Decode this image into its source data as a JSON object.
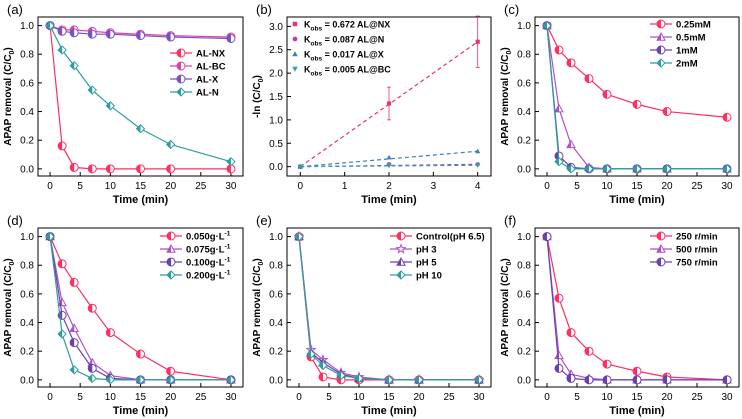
{
  "figure": {
    "xlabel": "Time (min)"
  },
  "chart_data": [
    {
      "panel_label": "(a)",
      "type": "line",
      "ylabel_main": "APAP removal (C/C",
      "ylabel_sub": "0",
      "ylabel_end": ")",
      "xlim": [
        -2,
        32
      ],
      "xticks": [
        0,
        5,
        10,
        15,
        20,
        25,
        30
      ],
      "ylim": [
        -0.05,
        1.06
      ],
      "yticks": [
        "0.0",
        "0.2",
        "0.4",
        "0.6",
        "0.8",
        "1.0"
      ],
      "legend_position": "middle-right",
      "series": [
        {
          "name": "AL-NX",
          "color": "#ff2e63",
          "marker": "half-circle-left",
          "x": [
            0,
            2,
            4,
            7,
            10,
            15,
            20,
            30
          ],
          "y": [
            1.0,
            0.16,
            0.01,
            0.0,
            0.0,
            0.0,
            0.0,
            0.0
          ]
        },
        {
          "name": "AL-BC",
          "color": "#e0449e",
          "marker": "half-circle-left",
          "x": [
            0,
            2,
            4,
            7,
            10,
            15,
            20,
            30
          ],
          "y": [
            1.0,
            0.97,
            0.97,
            0.96,
            0.95,
            0.94,
            0.93,
            0.92
          ]
        },
        {
          "name": "AL-X",
          "color": "#7a50c8",
          "marker": "half-circle-left",
          "x": [
            0,
            2,
            4,
            7,
            10,
            15,
            20,
            30
          ],
          "y": [
            1.0,
            0.96,
            0.95,
            0.94,
            0.94,
            0.93,
            0.92,
            0.91
          ]
        },
        {
          "name": "AL-N",
          "color": "#2f9da0",
          "marker": "half-diamond",
          "x": [
            0,
            2,
            4,
            7,
            10,
            15,
            20,
            30
          ],
          "y": [
            1.0,
            0.83,
            0.72,
            0.55,
            0.44,
            0.28,
            0.17,
            0.05
          ]
        }
      ]
    },
    {
      "panel_label": "(b)",
      "type": "scatter",
      "ylabel_main": "-ln (C/C",
      "ylabel_sub": "0",
      "ylabel_end": ")",
      "xlim": [
        -0.3,
        4.3
      ],
      "xticks": [
        0,
        1,
        2,
        3,
        4
      ],
      "ylim": [
        -0.2,
        3.2
      ],
      "yticks": [
        "0.0",
        "0.5",
        "1.0",
        "1.5",
        "2.0",
        "2.5",
        "3.0"
      ],
      "legend_position": "top-left",
      "series": [
        {
          "name": "AL@NX",
          "kobs": "0.672",
          "color": "#e8336d",
          "marker": "square",
          "x": [
            0,
            2,
            4
          ],
          "y": [
            0.0,
            1.35,
            2.67
          ],
          "err": [
            0,
            0.35,
            0.55
          ]
        },
        {
          "name": "AL@N",
          "kobs": "0.087",
          "color": "#c03aa8",
          "marker": "circle",
          "x": [
            0,
            2,
            4
          ],
          "y": [
            0.0,
            0.05,
            0.05
          ],
          "err": [
            0,
            0,
            0
          ]
        },
        {
          "name": "AL@X",
          "kobs": "0.017 ",
          "color": "#3a7fbf",
          "marker": "triangle",
          "x": [
            0,
            2,
            4
          ],
          "y": [
            0.0,
            0.2,
            0.33
          ],
          "err": [
            0,
            0,
            0
          ]
        },
        {
          "name": "AL@BC",
          "kobs": "0.005",
          "color": "#2aa5a5",
          "marker": "triangle-down",
          "x": [
            0,
            2,
            4
          ],
          "y": [
            0.0,
            0.02,
            0.03
          ],
          "err": [
            0,
            0,
            0
          ]
        }
      ]
    },
    {
      "panel_label": "(c)",
      "type": "line",
      "ylabel_main": "APAP removal (C/C",
      "ylabel_sub": "0",
      "ylabel_end": ")",
      "xlim": [
        -2,
        32
      ],
      "xticks": [
        0,
        5,
        10,
        15,
        20,
        25,
        30
      ],
      "ylim": [
        -0.05,
        1.06
      ],
      "yticks": [
        "0.0",
        "0.2",
        "0.4",
        "0.6",
        "0.8",
        "1.0"
      ],
      "legend_position": "top-right",
      "series": [
        {
          "name": "0.25mM",
          "color": "#ff2e63",
          "marker": "half-circle-left",
          "x": [
            0,
            2,
            4,
            7,
            10,
            15,
            20,
            30
          ],
          "y": [
            1.0,
            0.83,
            0.74,
            0.63,
            0.52,
            0.45,
            0.4,
            0.36
          ]
        },
        {
          "name": "0.5mM",
          "color": "#b050c8",
          "marker": "half-triangle",
          "x": [
            0,
            2,
            4,
            7,
            10,
            15,
            20,
            30
          ],
          "y": [
            1.0,
            0.42,
            0.17,
            0.01,
            0.0,
            0.0,
            0.0,
            0.0
          ]
        },
        {
          "name": "1mM",
          "color": "#6a40b0",
          "marker": "half-circle-left",
          "x": [
            0,
            2,
            4,
            7,
            10,
            15,
            20,
            30
          ],
          "y": [
            1.0,
            0.09,
            0.01,
            0.0,
            0.0,
            0.0,
            0.0,
            0.0
          ]
        },
        {
          "name": "2mM",
          "color": "#2f9da0",
          "marker": "half-diamond",
          "x": [
            0,
            2,
            4,
            7,
            10,
            15,
            20,
            30
          ],
          "y": [
            1.0,
            0.05,
            0.0,
            0.0,
            0.0,
            0.0,
            0.0,
            0.0
          ]
        }
      ]
    },
    {
      "panel_label": "(d)",
      "type": "line",
      "ylabel_main": "APAP removal (C/C",
      "ylabel_sub": "0",
      "ylabel_end": ")",
      "xlim": [
        -2,
        32
      ],
      "xticks": [
        0,
        5,
        10,
        15,
        20,
        25,
        30
      ],
      "ylim": [
        -0.05,
        1.06
      ],
      "yticks": [
        "0.0",
        "0.2",
        "0.4",
        "0.6",
        "0.8",
        "1.0"
      ],
      "legend_position": "top-right",
      "series": [
        {
          "name": "0.050g·L",
          "sup": "-1",
          "color": "#ff2e63",
          "marker": "half-circle-left",
          "x": [
            0,
            2,
            4,
            7,
            10,
            15,
            20,
            30
          ],
          "y": [
            1.0,
            0.81,
            0.68,
            0.5,
            0.33,
            0.18,
            0.06,
            0.0
          ]
        },
        {
          "name": "0.075g·L",
          "sup": "-1",
          "color": "#b050c8",
          "marker": "half-triangle",
          "x": [
            0,
            2,
            4,
            7,
            10,
            15,
            20,
            30
          ],
          "y": [
            1.0,
            0.54,
            0.36,
            0.12,
            0.03,
            0.0,
            0.0,
            0.0
          ]
        },
        {
          "name": "0.100g·L",
          "sup": "-1",
          "color": "#6a40b0",
          "marker": "half-circle-left",
          "x": [
            0,
            2,
            4,
            7,
            10,
            15,
            20,
            30
          ],
          "y": [
            1.0,
            0.45,
            0.26,
            0.08,
            0.01,
            0.0,
            0.0,
            0.0
          ]
        },
        {
          "name": "0.200g·L",
          "sup": "-1",
          "color": "#2f9da0",
          "marker": "half-diamond",
          "x": [
            0,
            2,
            4,
            7,
            10,
            15,
            20,
            30
          ],
          "y": [
            1.0,
            0.32,
            0.07,
            0.01,
            0.0,
            0.0,
            0.0,
            0.0
          ]
        }
      ]
    },
    {
      "panel_label": "(e)",
      "type": "line",
      "ylabel_main": "APAP removal (C/C",
      "ylabel_sub": "0",
      "ylabel_end": ")",
      "xlim": [
        -2,
        32
      ],
      "xticks": [
        0,
        5,
        10,
        15,
        20,
        25,
        30
      ],
      "ylim": [
        -0.05,
        1.06
      ],
      "yticks": [
        "0.0",
        "0.2",
        "0.4",
        "0.6",
        "0.8",
        "1.0"
      ],
      "legend_position": "top-right",
      "series": [
        {
          "name": "Control(pH 6.5)",
          "color": "#ff2e63",
          "marker": "half-circle-left",
          "x": [
            0,
            2,
            4,
            7,
            10,
            15,
            20,
            30
          ],
          "y": [
            1.0,
            0.16,
            0.02,
            0.0,
            0.0,
            0.0,
            0.0,
            0.0
          ]
        },
        {
          "name": "pH 3",
          "color": "#b050c8",
          "marker": "star",
          "x": [
            0,
            2,
            4,
            7,
            10,
            15,
            20,
            30
          ],
          "y": [
            1.0,
            0.21,
            0.14,
            0.05,
            0.02,
            0.0,
            0.0,
            0.0
          ]
        },
        {
          "name": "pH 5",
          "color": "#6a40b0",
          "marker": "half-triangle",
          "x": [
            0,
            2,
            4,
            7,
            10,
            15,
            20,
            30
          ],
          "y": [
            1.0,
            0.19,
            0.12,
            0.04,
            0.01,
            0.0,
            0.0,
            0.0
          ]
        },
        {
          "name": "pH 10",
          "color": "#2f9da0",
          "marker": "half-diamond",
          "x": [
            0,
            2,
            4,
            7,
            10,
            15,
            20,
            30
          ],
          "y": [
            1.0,
            0.18,
            0.1,
            0.03,
            0.01,
            0.0,
            0.0,
            0.0
          ]
        }
      ]
    },
    {
      "panel_label": "(f)",
      "type": "line",
      "ylabel_main": "APAP removal (C/C",
      "ylabel_sub": "0",
      "ylabel_end": ")",
      "xlim": [
        -2,
        32
      ],
      "xticks": [
        0,
        5,
        10,
        15,
        20,
        25,
        30
      ],
      "ylim": [
        -0.05,
        1.06
      ],
      "yticks": [
        "0.0",
        "0.2",
        "0.4",
        "0.6",
        "0.8",
        "1.0"
      ],
      "legend_position": "top-right",
      "series": [
        {
          "name": "250 r/min",
          "color": "#ff2e63",
          "marker": "half-circle-left",
          "x": [
            0,
            2,
            4,
            7,
            10,
            15,
            20,
            30
          ],
          "y": [
            1.0,
            0.57,
            0.33,
            0.2,
            0.11,
            0.06,
            0.02,
            0.0
          ]
        },
        {
          "name": "500 r/min",
          "color": "#b050c8",
          "marker": "half-triangle",
          "x": [
            0,
            2,
            4,
            7,
            10,
            15,
            20,
            30
          ],
          "y": [
            1.0,
            0.17,
            0.04,
            0.01,
            0.0,
            0.0,
            0.0,
            0.0
          ]
        },
        {
          "name": "750 r/min",
          "color": "#6a40b0",
          "marker": "half-circle-left",
          "x": [
            0,
            2,
            4,
            7,
            10,
            15,
            20,
            30
          ],
          "y": [
            1.0,
            0.08,
            0.01,
            0.0,
            0.0,
            0.0,
            0.0,
            0.0
          ]
        }
      ]
    }
  ]
}
